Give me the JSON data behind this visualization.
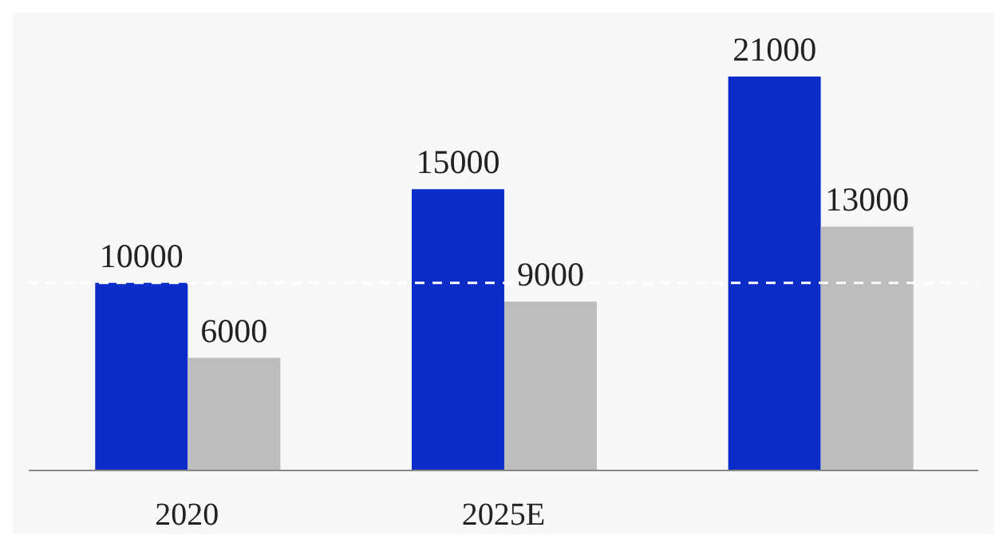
{
  "chart_data": {
    "type": "bar",
    "categories": [
      "2020",
      "2025E",
      null
    ],
    "series": [
      {
        "color": "#0b2cc8",
        "values": [
          10000,
          15000,
          21000
        ]
      },
      {
        "color": "#bdbdbf",
        "values": [
          6000,
          9000,
          13000
        ]
      }
    ],
    "data_labels": true,
    "ref_lines": [
      {
        "axis": "y",
        "value": 10000,
        "color": "#ffffff",
        "line_style": "dashed"
      }
    ],
    "grid": false,
    "legend": false,
    "tick_labels": "x"
  }
}
